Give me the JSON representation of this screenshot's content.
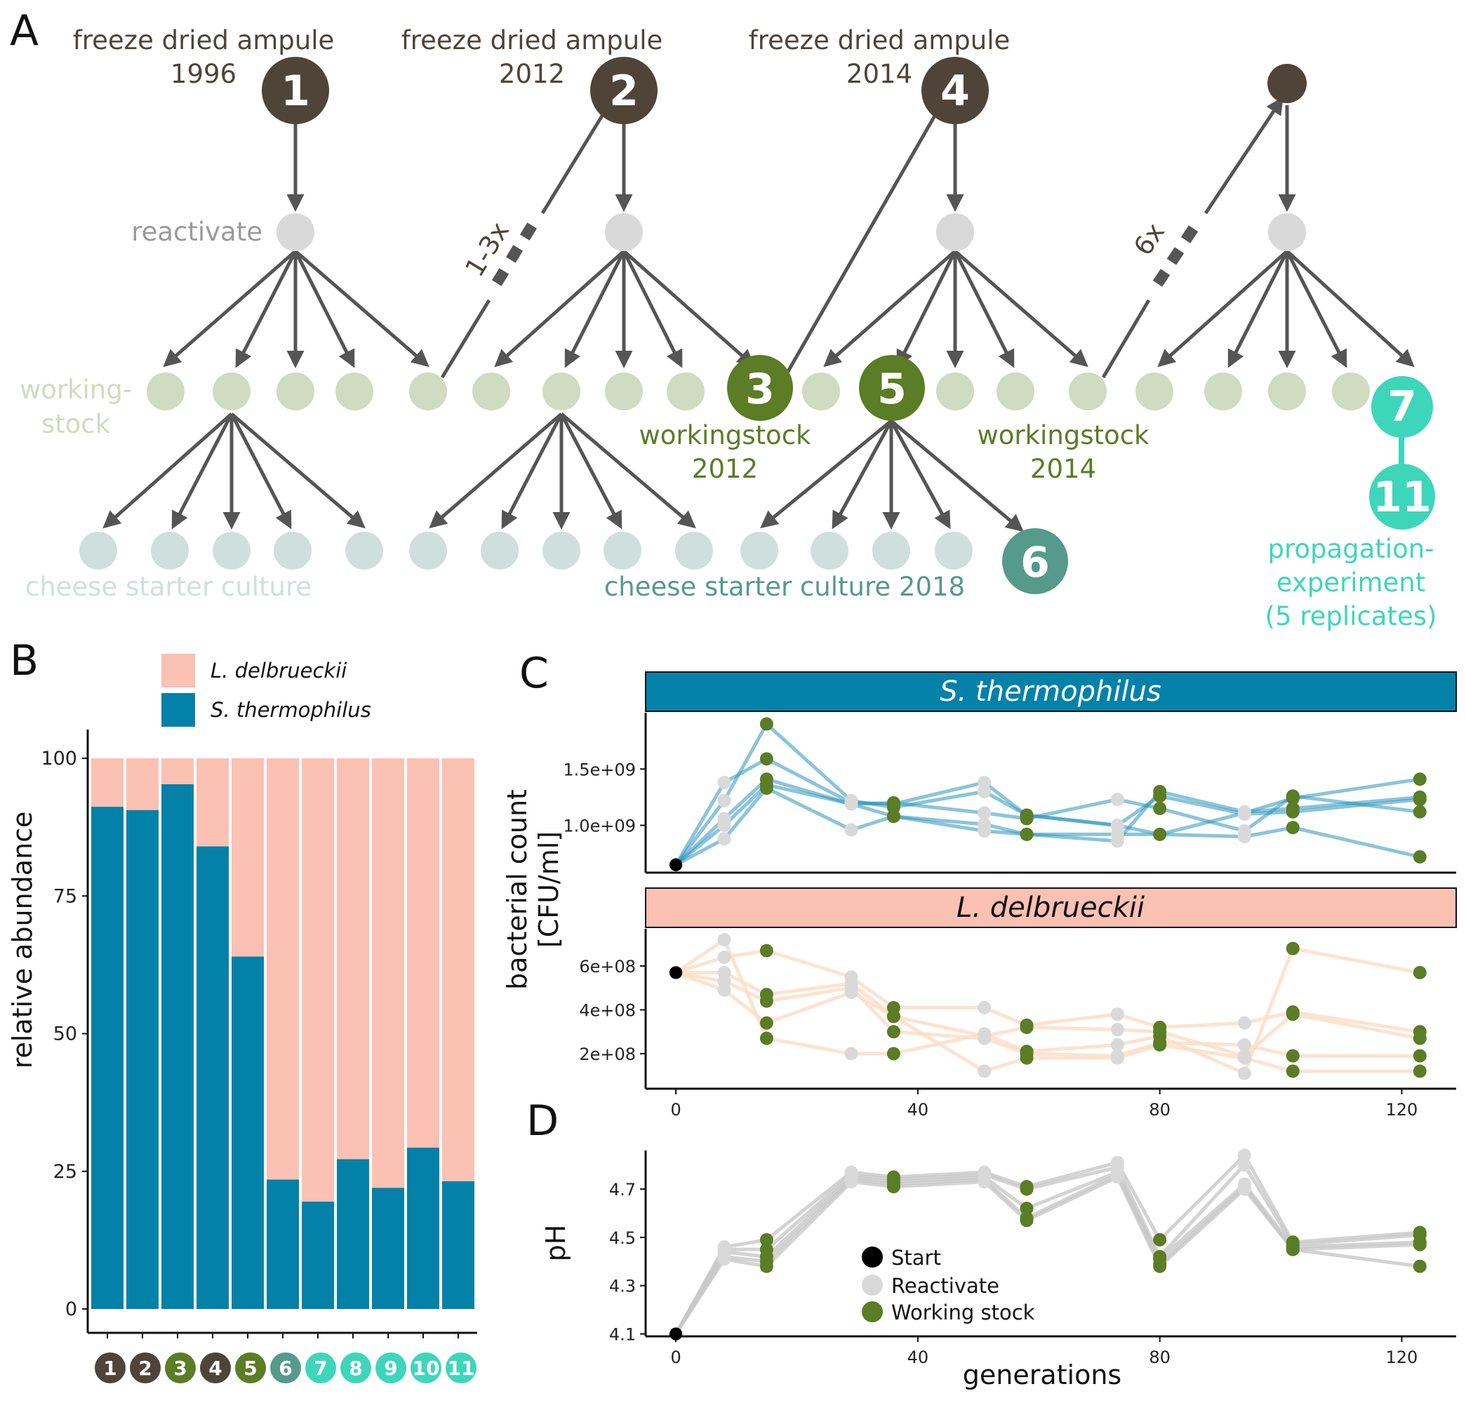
{
  "panel_a": {
    "letter": "A",
    "ampules": [
      {
        "label1": "freeze dried ampule",
        "label2": "1996",
        "num": "1"
      },
      {
        "label1": "freeze dried ampule",
        "label2": "2012",
        "num": "2"
      },
      {
        "label1": "freeze dried ampule",
        "label2": "2014",
        "num": "4"
      }
    ],
    "reactivate": "reactivate",
    "working_stock_l1": "working-",
    "working_stock_l2": "stock",
    "loop1": "1-3x",
    "loop2": "6x",
    "ws2012_l1": "workingstock",
    "ws2012_l2": "2012",
    "ws2014_l1": "workingstock",
    "ws2014_l2": "2014",
    "num3": "3",
    "num5": "5",
    "num6": "6",
    "num7": "7",
    "num11": "11",
    "cheese": "cheese starter culture",
    "cheese2018": "cheese starter culture 2018",
    "prop_l1": "propagation-",
    "prop_l2": "experiment",
    "prop_l3": "(5 replicates)",
    "colors": {
      "ampule": "#4e4538",
      "reactivate": "#d9d9d9",
      "working": "#d0dbbf",
      "cheese": "#cfe0dc",
      "green": "#5a7d25",
      "teal_dark": "#559a8a",
      "teal": "#3ed6bb",
      "arrow": "#555555"
    }
  },
  "panel_b": {
    "letter": "B",
    "legend": [
      "L. delbrueckii",
      "S. thermophilus"
    ],
    "ylabel": "relative abundance",
    "yticks": [
      "0",
      "25",
      "50",
      "75",
      "100"
    ],
    "colors": {
      "delbrueckii": "#fbc1b3",
      "thermophilus": "#0481a8"
    },
    "badge_colors": [
      "#4e4538",
      "#4e4538",
      "#5a7d25",
      "#4e4538",
      "#5a7d25",
      "#559a8a",
      "#3ed6bb",
      "#3ed6bb",
      "#3ed6bb",
      "#3ed6bb",
      "#3ed6bb"
    ]
  },
  "panel_c": {
    "letter": "C",
    "strip_top": "S. thermophilus",
    "strip_bottom": "L. delbrueckii",
    "ylabel_l1": "bacterial count",
    "ylabel_l2": "[CFU/ml]",
    "yticks_top": [
      "1.0e+09",
      "1.5e+09"
    ],
    "yticks_bottom": [
      "2e+08",
      "4e+08",
      "6e+08"
    ],
    "xticks": [
      "0",
      "40",
      "80",
      "120"
    ],
    "colors": {
      "strip_top": "#0481a8",
      "strip_bottom": "#fbc1b3",
      "line_top": "#2a95bd",
      "line_bottom": "#fddcc4"
    }
  },
  "panel_d": {
    "letter": "D",
    "ylabel": "pH",
    "xlabel": "generations",
    "yticks": [
      "4.1",
      "4.3",
      "4.5",
      "4.7"
    ],
    "xticks": [
      "0",
      "40",
      "80",
      "120"
    ],
    "legend": [
      "Start",
      "Reactivate",
      "Working stock"
    ],
    "colors": {
      "start": "#000000",
      "reactivate": "#d9d9d9",
      "working": "#5a7d25",
      "line": "#c8c8c8"
    }
  },
  "chart_data": [
    {
      "type": "bar",
      "panel": "B",
      "categories": [
        "1",
        "2",
        "3",
        "4",
        "5",
        "6",
        "7",
        "8",
        "9",
        "10",
        "11"
      ],
      "series": [
        {
          "name": "S. thermophilus",
          "values": [
            91.2,
            90.6,
            95.3,
            84.0,
            64.0,
            23.5,
            19.5,
            27.2,
            22.0,
            29.3,
            23.2
          ]
        },
        {
          "name": "L. delbrueckii",
          "values": [
            8.8,
            9.4,
            4.7,
            16.0,
            36.0,
            76.5,
            80.5,
            72.8,
            78.0,
            70.7,
            76.8
          ]
        }
      ],
      "ylabel": "relative abundance",
      "ylim": [
        0,
        100
      ],
      "stacked": true
    },
    {
      "type": "line",
      "panel": "C",
      "facet": "S. thermophilus",
      "ylabel": "bacterial count [CFU/ml]",
      "xlim": [
        -5,
        129
      ],
      "ylim": [
        580000000,
        2000000000
      ],
      "x": [
        0,
        8,
        15,
        29,
        36,
        51,
        58,
        73,
        80,
        94,
        102,
        123
      ],
      "point_types": [
        "start",
        "reactivate",
        "working",
        "reactivate",
        "working",
        "reactivate",
        "working",
        "reactivate",
        "working",
        "reactivate",
        "working",
        "working"
      ],
      "series": [
        {
          "values": [
            650000000,
            1380000000,
            1590000000,
            1200000000,
            1190000000,
            1380000000,
            1090000000,
            1000000000,
            920000000,
            1110000000,
            1240000000,
            1410000000
          ]
        },
        {
          "values": [
            650000000,
            1220000000,
            1900000000,
            1220000000,
            1160000000,
            1300000000,
            1090000000,
            1000000000,
            1260000000,
            1100000000,
            1120000000,
            1230000000
          ]
        },
        {
          "values": [
            650000000,
            1060000000,
            1410000000,
            1190000000,
            1200000000,
            1110000000,
            1060000000,
            1230000000,
            1150000000,
            950000000,
            1260000000,
            1120000000
          ]
        },
        {
          "values": [
            650000000,
            1000000000,
            1360000000,
            1190000000,
            1080000000,
            1010000000,
            920000000,
            860000000,
            1300000000,
            1120000000,
            1150000000,
            1250000000
          ]
        },
        {
          "values": [
            650000000,
            880000000,
            1330000000,
            960000000,
            1080000000,
            950000000,
            920000000,
            920000000,
            920000000,
            900000000,
            980000000,
            720000000
          ]
        }
      ]
    },
    {
      "type": "line",
      "panel": "C",
      "facet": "L. delbrueckii",
      "xlabel": "generations",
      "xlim": [
        -5,
        129
      ],
      "ylim": [
        40000000,
        770000000
      ],
      "x": [
        0,
        8,
        15,
        29,
        36,
        51,
        58,
        73,
        80,
        94,
        102,
        123
      ],
      "point_types": [
        "start",
        "reactivate",
        "working",
        "reactivate",
        "working",
        "reactivate",
        "working",
        "reactivate",
        "working",
        "reactivate",
        "working",
        "working"
      ],
      "series": [
        {
          "values": [
            570000000,
            720000000,
            270000000,
            200000000,
            200000000,
            290000000,
            210000000,
            240000000,
            280000000,
            110000000,
            680000000,
            570000000
          ]
        },
        {
          "values": [
            570000000,
            640000000,
            670000000,
            550000000,
            410000000,
            410000000,
            330000000,
            380000000,
            320000000,
            340000000,
            390000000,
            300000000
          ]
        },
        {
          "values": [
            570000000,
            570000000,
            470000000,
            520000000,
            370000000,
            280000000,
            320000000,
            310000000,
            300000000,
            190000000,
            380000000,
            270000000
          ]
        },
        {
          "values": [
            570000000,
            530000000,
            440000000,
            500000000,
            300000000,
            270000000,
            200000000,
            190000000,
            250000000,
            240000000,
            190000000,
            190000000
          ]
        },
        {
          "values": [
            570000000,
            490000000,
            340000000,
            480000000,
            370000000,
            120000000,
            180000000,
            180000000,
            240000000,
            180000000,
            120000000,
            120000000
          ]
        }
      ]
    },
    {
      "type": "line",
      "panel": "D",
      "xlabel": "generations",
      "ylabel": "pH",
      "xlim": [
        -5,
        129
      ],
      "ylim": [
        4.09,
        4.86
      ],
      "x": [
        0,
        8,
        15,
        29,
        36,
        51,
        58,
        73,
        80,
        94,
        102,
        123
      ],
      "point_types": [
        "start",
        "reactivate",
        "working",
        "reactivate",
        "working",
        "reactivate",
        "working",
        "reactivate",
        "working",
        "reactivate",
        "working",
        "working"
      ],
      "series": [
        {
          "values": [
            4.1,
            4.46,
            4.49,
            4.77,
            4.75,
            4.77,
            4.71,
            4.81,
            4.49,
            4.84,
            4.48,
            4.52
          ]
        },
        {
          "values": [
            4.1,
            4.45,
            4.45,
            4.76,
            4.74,
            4.76,
            4.7,
            4.79,
            4.42,
            4.8,
            4.47,
            4.51
          ]
        },
        {
          "values": [
            4.1,
            4.44,
            4.42,
            4.75,
            4.73,
            4.75,
            4.62,
            4.77,
            4.41,
            4.72,
            4.46,
            4.48
          ]
        },
        {
          "values": [
            4.1,
            4.42,
            4.4,
            4.74,
            4.72,
            4.74,
            4.58,
            4.76,
            4.39,
            4.71,
            4.45,
            4.47
          ]
        },
        {
          "values": [
            4.1,
            4.41,
            4.38,
            4.73,
            4.71,
            4.73,
            4.57,
            4.75,
            4.38,
            4.7,
            4.45,
            4.38
          ]
        }
      ]
    }
  ]
}
